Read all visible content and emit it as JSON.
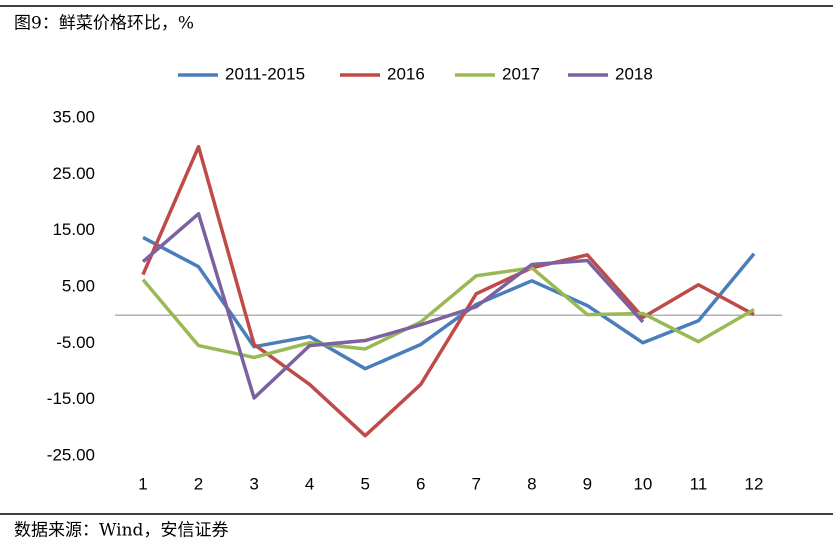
{
  "chart_data": {
    "type": "line",
    "title": "图9：鲜菜价格环比，%",
    "source": "数据来源：Wind，安信证券",
    "categories": [
      "1",
      "2",
      "3",
      "4",
      "5",
      "6",
      "7",
      "8",
      "9",
      "10",
      "11",
      "12"
    ],
    "series": [
      {
        "name": "2011-2015",
        "color": "#4a7ebb",
        "values": [
          13.8,
          8.6,
          -5.6,
          -3.8,
          -9.5,
          -5.2,
          1.9,
          6.1,
          1.7,
          -4.9,
          -1.0,
          10.9
        ]
      },
      {
        "name": "2016",
        "color": "#be4b48",
        "values": [
          7.2,
          29.9,
          -5.2,
          -12.3,
          -21.4,
          -12.3,
          3.8,
          8.4,
          10.7,
          -0.4,
          5.4,
          0.1
        ]
      },
      {
        "name": "2017",
        "color": "#98b954",
        "values": [
          6.3,
          -5.4,
          -7.5,
          -4.9,
          -6.0,
          -1.2,
          7.0,
          8.4,
          0.1,
          0.3,
          -4.7,
          1.0
        ]
      },
      {
        "name": "2018",
        "color": "#7d60a0",
        "values": [
          9.5,
          18.0,
          -14.7,
          -5.4,
          -4.5,
          -1.7,
          1.5,
          9.0,
          9.7,
          -1.2,
          null,
          null
        ]
      }
    ],
    "ylim": [
      -25,
      35
    ],
    "yticks": [
      {
        "value": 35,
        "label": "35.00"
      },
      {
        "value": 25,
        "label": "25.00"
      },
      {
        "value": 15,
        "label": "15.00"
      },
      {
        "value": 5,
        "label": "5.00"
      },
      {
        "value": -5,
        "label": "-5.00"
      },
      {
        "value": -15,
        "label": "-15.00"
      },
      {
        "value": -25,
        "label": "-25.00"
      }
    ],
    "legend": "top"
  }
}
